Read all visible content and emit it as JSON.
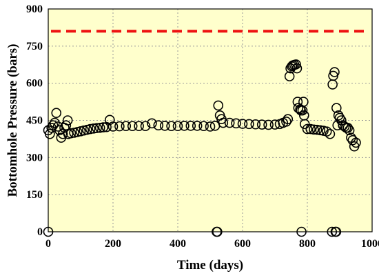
{
  "chart_data": {
    "type": "scatter",
    "xlabel": "Time  (days)",
    "ylabel": "Bottomhole Pressure  (bars)",
    "xlim": [
      0,
      1000
    ],
    "ylim": [
      0,
      900
    ],
    "xticks": [
      0,
      200,
      400,
      600,
      800,
      1000
    ],
    "yticks": [
      0,
      150,
      300,
      450,
      600,
      750,
      900
    ],
    "xtick_labels": [
      "0",
      "200",
      "400",
      "600",
      "800",
      "1000"
    ],
    "ytick_labels": [
      "0",
      "150",
      "300",
      "450",
      "600",
      "750",
      "900"
    ],
    "grid": true,
    "legend": "none",
    "plot_background": "#FFFFCC",
    "reference_line": {
      "y": 810,
      "color": "#EE1111",
      "style": "dashed"
    },
    "series": [
      {
        "marker": "open-circle",
        "color": "#000000",
        "points": [
          [
            0,
            0
          ],
          [
            0,
            410
          ],
          [
            5,
            395
          ],
          [
            10,
            420
          ],
          [
            15,
            430
          ],
          [
            20,
            440
          ],
          [
            25,
            480
          ],
          [
            30,
            425
          ],
          [
            35,
            410
          ],
          [
            40,
            380
          ],
          [
            45,
            395
          ],
          [
            50,
            420
          ],
          [
            55,
            430
          ],
          [
            60,
            450
          ],
          [
            62,
            395
          ],
          [
            70,
            398
          ],
          [
            80,
            400
          ],
          [
            90,
            403
          ],
          [
            100,
            406
          ],
          [
            110,
            409
          ],
          [
            120,
            412
          ],
          [
            130,
            415
          ],
          [
            140,
            417
          ],
          [
            150,
            419
          ],
          [
            160,
            420
          ],
          [
            170,
            422
          ],
          [
            180,
            423
          ],
          [
            190,
            452
          ],
          [
            200,
            425
          ],
          [
            220,
            426
          ],
          [
            240,
            427
          ],
          [
            260,
            427
          ],
          [
            280,
            427
          ],
          [
            300,
            427
          ],
          [
            320,
            438
          ],
          [
            340,
            430
          ],
          [
            360,
            428
          ],
          [
            380,
            427
          ],
          [
            400,
            427
          ],
          [
            420,
            428
          ],
          [
            440,
            428
          ],
          [
            460,
            428
          ],
          [
            480,
            427
          ],
          [
            500,
            425
          ],
          [
            515,
            428
          ],
          [
            520,
            0
          ],
          [
            522,
            0
          ],
          [
            525,
            510
          ],
          [
            530,
            470
          ],
          [
            535,
            455
          ],
          [
            540,
            440
          ],
          [
            560,
            440
          ],
          [
            580,
            438
          ],
          [
            600,
            436
          ],
          [
            620,
            435
          ],
          [
            640,
            434
          ],
          [
            660,
            433
          ],
          [
            680,
            432
          ],
          [
            700,
            433
          ],
          [
            715,
            435
          ],
          [
            725,
            440
          ],
          [
            735,
            445
          ],
          [
            740,
            455
          ],
          [
            745,
            628
          ],
          [
            748,
            660
          ],
          [
            752,
            668
          ],
          [
            755,
            672
          ],
          [
            760,
            674
          ],
          [
            765,
            676
          ],
          [
            768,
            660
          ],
          [
            770,
            525
          ],
          [
            772,
            500
          ],
          [
            778,
            495
          ],
          [
            780,
            490
          ],
          [
            782,
            0
          ],
          [
            785,
            490
          ],
          [
            788,
            525
          ],
          [
            790,
            470
          ],
          [
            792,
            435
          ],
          [
            800,
            415
          ],
          [
            810,
            415
          ],
          [
            820,
            413
          ],
          [
            830,
            412
          ],
          [
            840,
            410
          ],
          [
            850,
            408
          ],
          [
            860,
            405
          ],
          [
            870,
            395
          ],
          [
            876,
            0
          ],
          [
            878,
            595
          ],
          [
            880,
            630
          ],
          [
            884,
            645
          ],
          [
            887,
            0
          ],
          [
            889,
            0
          ],
          [
            890,
            500
          ],
          [
            893,
            430
          ],
          [
            896,
            470
          ],
          [
            900,
            460
          ],
          [
            905,
            450
          ],
          [
            910,
            430
          ],
          [
            915,
            425
          ],
          [
            920,
            420
          ],
          [
            925,
            420
          ],
          [
            930,
            410
          ],
          [
            935,
            380
          ],
          [
            940,
            370
          ],
          [
            945,
            345
          ],
          [
            950,
            360
          ]
        ]
      }
    ]
  }
}
